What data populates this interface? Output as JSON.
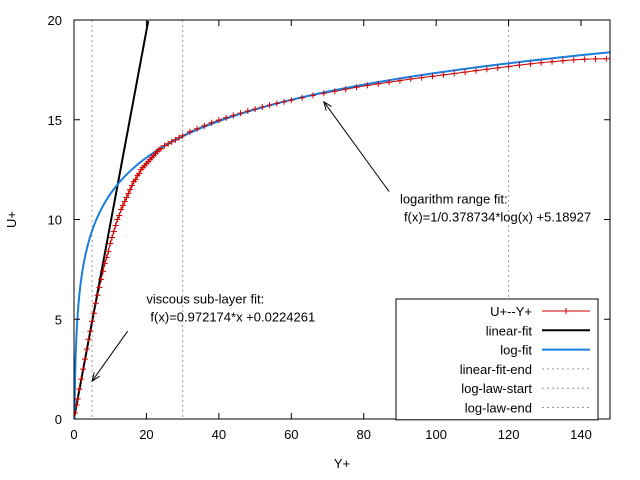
{
  "chart_data": {
    "type": "line",
    "xlabel": "Y+",
    "ylabel": "U+",
    "xlim": [
      0,
      148
    ],
    "ylim": [
      0,
      20
    ],
    "x_ticks": [
      0,
      20,
      40,
      60,
      80,
      100,
      120,
      140
    ],
    "y_ticks": [
      0,
      5,
      10,
      15,
      20
    ],
    "grid": false,
    "legend_position": "bottom-right",
    "series": [
      {
        "name": "U+--Y+",
        "color": "#cc0000",
        "marker": "plus",
        "points": [
          [
            0.3,
            0.3
          ],
          [
            0.7,
            0.7
          ],
          [
            1.0,
            1.0
          ],
          [
            1.5,
            1.5
          ],
          [
            2.0,
            2.0
          ],
          [
            2.5,
            2.5
          ],
          [
            3.0,
            3.0
          ],
          [
            3.5,
            3.5
          ],
          [
            4.0,
            4.0
          ],
          [
            4.5,
            4.4
          ],
          [
            5.0,
            4.9
          ],
          [
            5.5,
            5.3
          ],
          [
            6.0,
            5.8
          ],
          [
            6.5,
            6.2
          ],
          [
            7.0,
            6.6
          ],
          [
            7.5,
            7.0
          ],
          [
            8.0,
            7.4
          ],
          [
            8.5,
            7.8
          ],
          [
            9.0,
            8.1
          ],
          [
            9.5,
            8.4
          ],
          [
            10.0,
            8.8
          ],
          [
            10.5,
            9.1
          ],
          [
            11.0,
            9.4
          ],
          [
            11.5,
            9.7
          ],
          [
            12.0,
            10.0
          ],
          [
            12.5,
            10.2
          ],
          [
            13.0,
            10.5
          ],
          [
            13.5,
            10.7
          ],
          [
            14.0,
            10.9
          ],
          [
            14.5,
            11.1
          ],
          [
            15.0,
            11.3
          ],
          [
            15.5,
            11.5
          ],
          [
            16.0,
            11.7
          ],
          [
            16.5,
            11.9
          ],
          [
            17.0,
            12.0
          ],
          [
            17.5,
            12.2
          ],
          [
            18.0,
            12.3
          ],
          [
            18.5,
            12.5
          ],
          [
            19.0,
            12.6
          ],
          [
            19.5,
            12.7
          ],
          [
            20.0,
            12.8
          ],
          [
            20.5,
            12.9
          ],
          [
            21.0,
            13.0
          ],
          [
            21.5,
            13.1
          ],
          [
            22.0,
            13.2
          ],
          [
            22.5,
            13.3
          ],
          [
            23.0,
            13.4
          ],
          [
            23.5,
            13.5
          ],
          [
            24.0,
            13.55
          ],
          [
            25.0,
            13.7
          ],
          [
            26.0,
            13.8
          ],
          [
            27.0,
            13.9
          ],
          [
            28.0,
            14.0
          ],
          [
            29.0,
            14.1
          ],
          [
            30.0,
            14.2
          ],
          [
            32.0,
            14.4
          ],
          [
            34.0,
            14.55
          ],
          [
            36.0,
            14.7
          ],
          [
            38.0,
            14.85
          ],
          [
            40.0,
            14.98
          ],
          [
            42.0,
            15.1
          ],
          [
            44.0,
            15.22
          ],
          [
            46.0,
            15.33
          ],
          [
            48.0,
            15.44
          ],
          [
            50.0,
            15.54
          ],
          [
            52.0,
            15.64
          ],
          [
            54.0,
            15.73
          ],
          [
            56.0,
            15.82
          ],
          [
            58.0,
            15.9
          ],
          [
            60.0,
            15.98
          ],
          [
            63.0,
            16.1
          ],
          [
            66.0,
            16.22
          ],
          [
            69.0,
            16.33
          ],
          [
            72.0,
            16.43
          ],
          [
            75.0,
            16.53
          ],
          [
            78.0,
            16.63
          ],
          [
            81.0,
            16.72
          ],
          [
            84.0,
            16.8
          ],
          [
            87.0,
            16.88
          ],
          [
            90.0,
            16.96
          ],
          [
            93.0,
            17.04
          ],
          [
            96.0,
            17.11
          ],
          [
            99.0,
            17.18
          ],
          [
            102.0,
            17.25
          ],
          [
            105.0,
            17.32
          ],
          [
            108.0,
            17.39
          ],
          [
            111.0,
            17.46
          ],
          [
            114.0,
            17.53
          ],
          [
            117.0,
            17.6
          ],
          [
            120.0,
            17.67
          ],
          [
            123.0,
            17.74
          ],
          [
            126.0,
            17.8
          ],
          [
            129.0,
            17.86
          ],
          [
            132.0,
            17.91
          ],
          [
            135.0,
            17.96
          ],
          [
            138.0,
            18.0
          ],
          [
            141.0,
            18.03
          ],
          [
            144.0,
            18.05
          ],
          [
            147.0,
            18.06
          ]
        ]
      },
      {
        "name": "linear-fit",
        "color": "#000000",
        "function": "linear",
        "slope": 0.972174,
        "intercept": 0.0224261,
        "x_range": [
          0,
          20.5
        ]
      },
      {
        "name": "log-fit",
        "color": "#1a7fdc",
        "function": "log",
        "kappa": 0.378734,
        "B": 5.18927,
        "x_range": [
          0.05,
          148
        ]
      },
      {
        "name": "linear-fit-end",
        "color": "#999999",
        "dotted_vertical_x": 5
      },
      {
        "name": "log-law-start",
        "color": "#999999",
        "dotted_vertical_x": 30
      },
      {
        "name": "log-law-end",
        "color": "#999999",
        "dotted_vertical_x": 120
      }
    ],
    "annotations": [
      {
        "lines": [
          "logarithm range fit:",
          "f(x)=1/0.378734*log(x) +5.18927"
        ],
        "text_at": [
          90,
          10.8
        ],
        "arrow_from": [
          87,
          11.4
        ],
        "arrow_to": [
          69,
          15.9
        ]
      },
      {
        "lines": [
          "viscous sub-layer fit:",
          "f(x)=0.972174*x +0.0224261"
        ],
        "text_at": [
          20,
          5.8
        ],
        "arrow_from": [
          14.8,
          4.4
        ],
        "arrow_to": [
          5,
          1.9
        ]
      }
    ]
  }
}
